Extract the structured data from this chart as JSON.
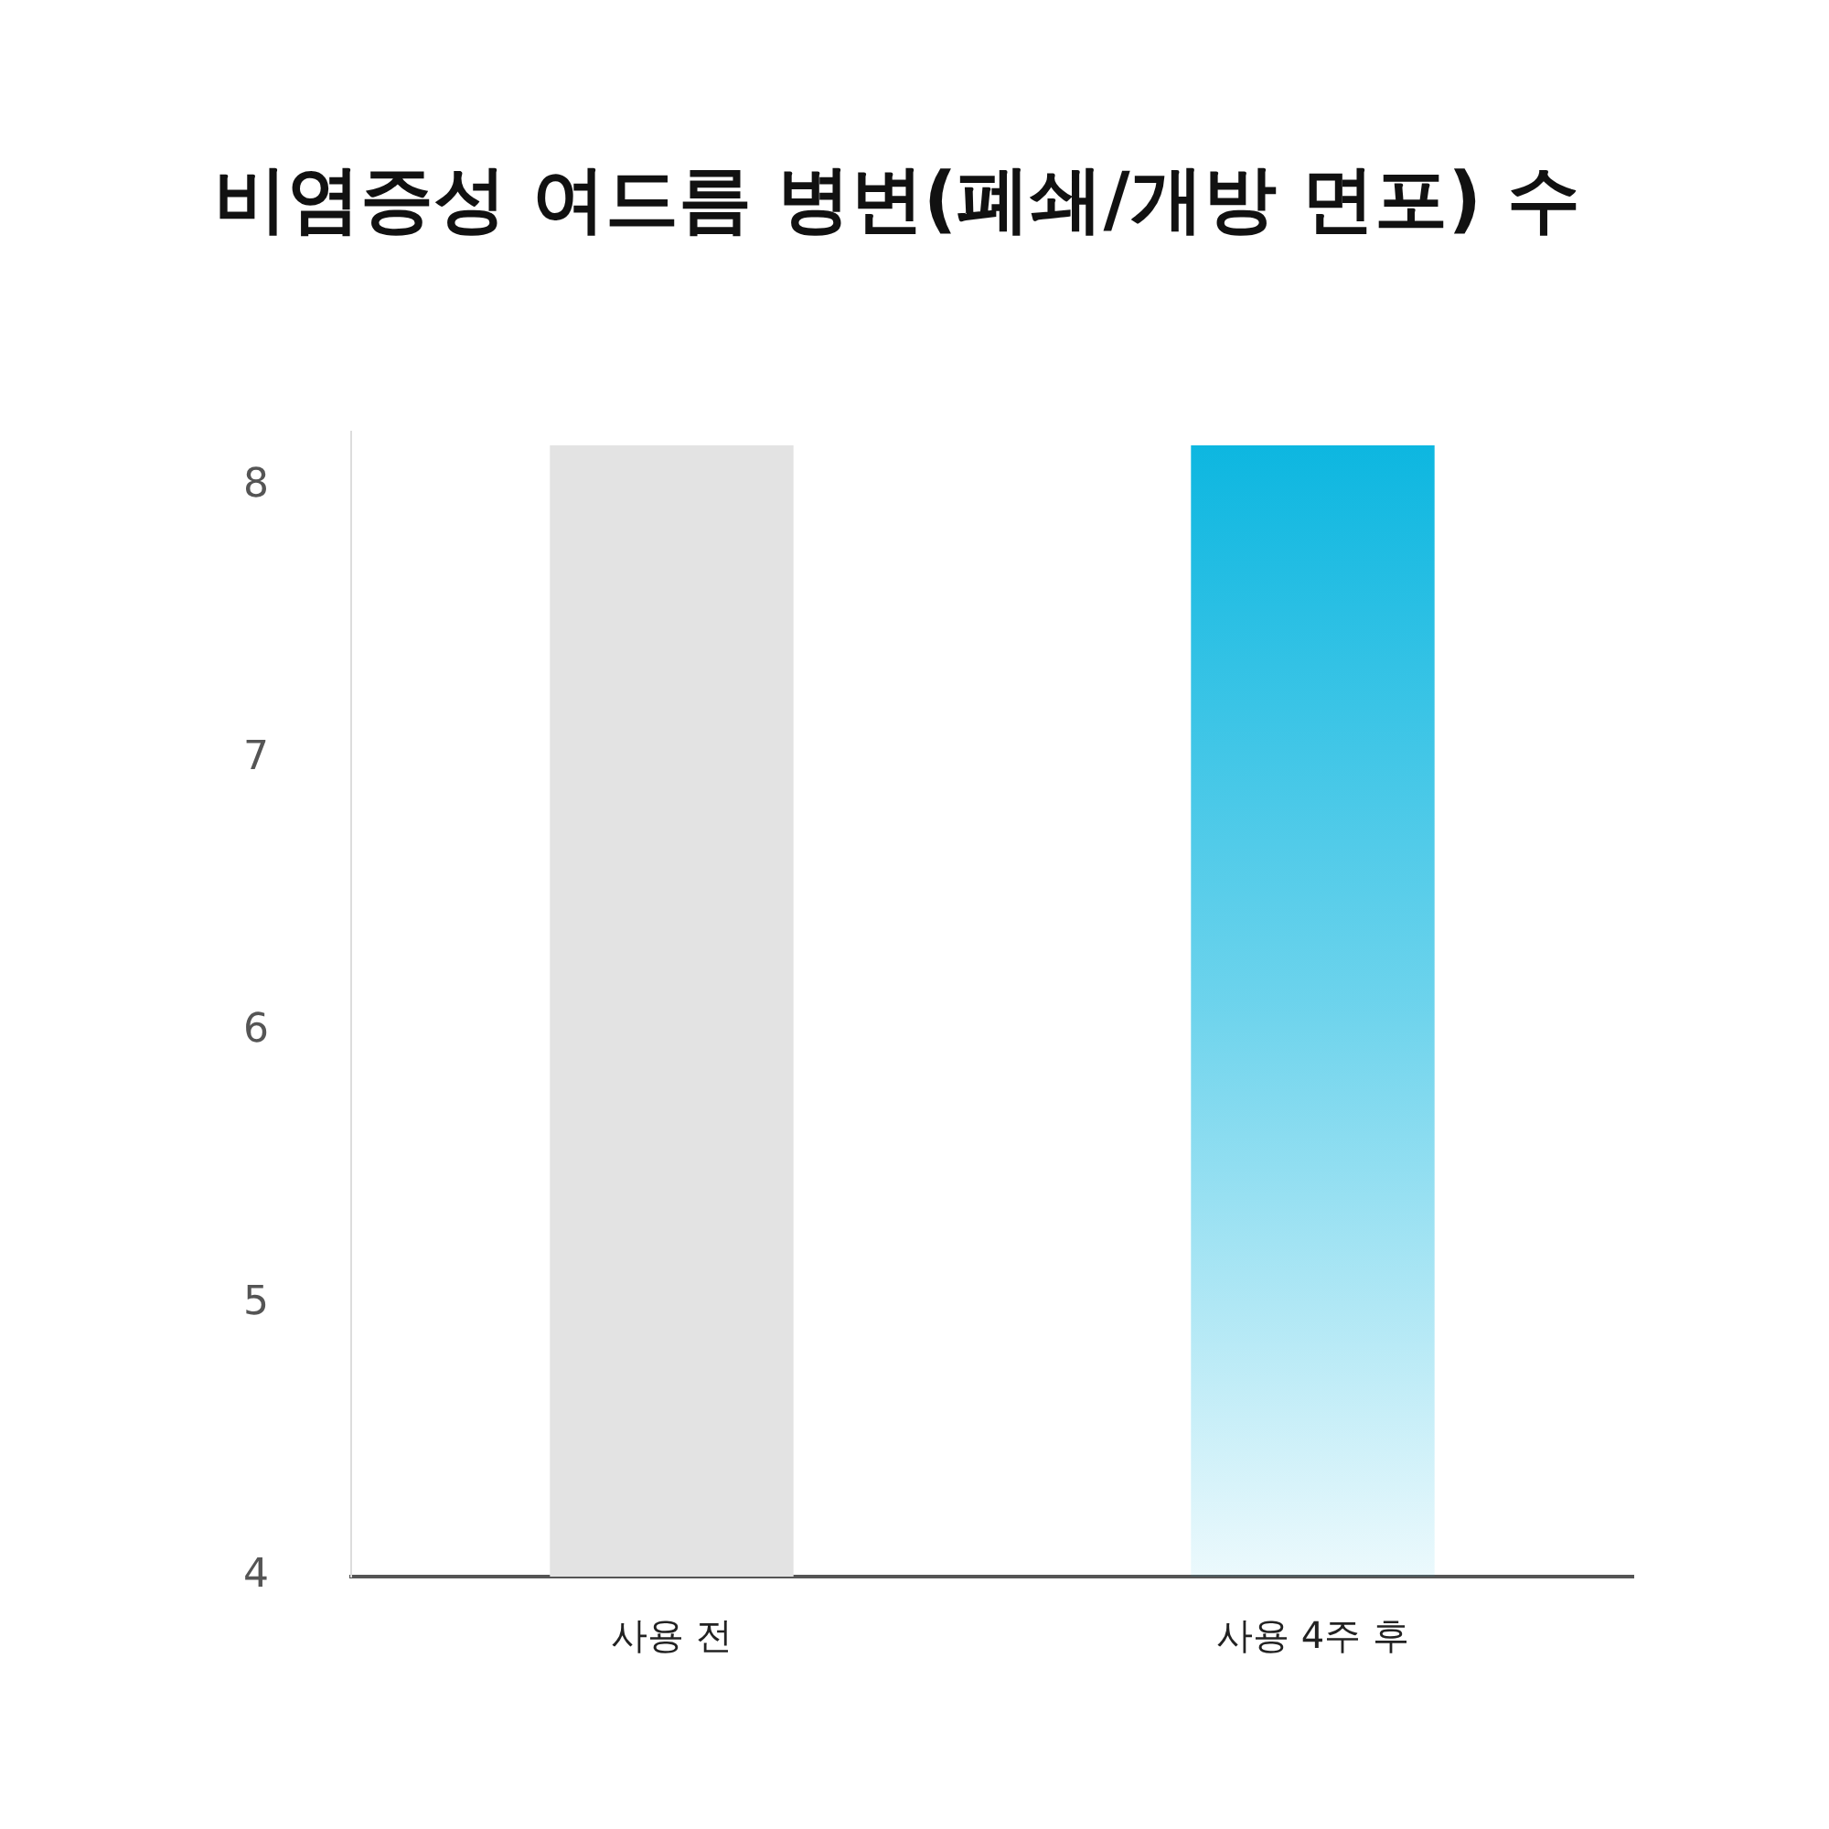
{
  "chart_data": {
    "type": "bar",
    "title": "비염증성 여드름 병변(폐쇄/개방 면포) 수",
    "categories": [
      "사용 전",
      "사용 4주 후"
    ],
    "values": [
      8.15,
      8.15
    ],
    "colors": [
      "#e3e3e3",
      "#0bb6e0"
    ],
    "ylim": [
      4,
      8.2
    ],
    "yticks": [
      4,
      5,
      6,
      7,
      8
    ],
    "grid": false,
    "legend": false
  }
}
